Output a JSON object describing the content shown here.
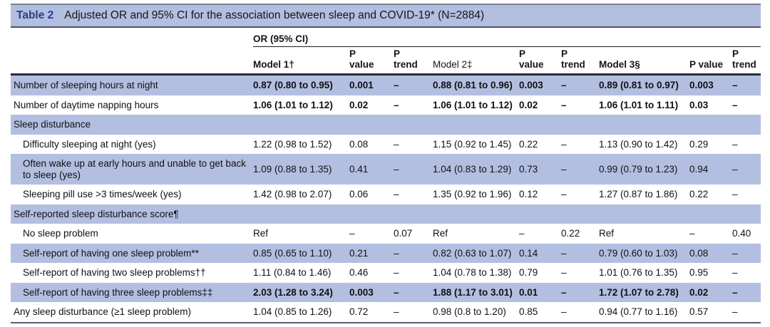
{
  "table": {
    "title_label": "Table 2",
    "title_text": "Adjusted OR and 95% CI for the association between sleep and COVID-19* (N=2884)",
    "spanner": "OR (95% CI)",
    "columns": [
      {
        "label": "",
        "bold": true
      },
      {
        "label": "Model 1†",
        "bold": true
      },
      {
        "label": "P\nvalue",
        "bold": true
      },
      {
        "label": "P\ntrend",
        "bold": true
      },
      {
        "label": "Model 2‡",
        "bold": false
      },
      {
        "label": "P\nvalue",
        "bold": true
      },
      {
        "label": "P\ntrend",
        "bold": true
      },
      {
        "label": "Model 3§",
        "bold": true
      },
      {
        "label": "P value",
        "bold": true
      },
      {
        "label": "P\ntrend",
        "bold": true
      }
    ],
    "rows": [
      {
        "label": "Number of sleeping hours at night",
        "section": false,
        "indent": false,
        "bold": true,
        "shaded": true,
        "values": [
          "0.87 (0.80 to 0.95)",
          "0.001",
          "–",
          "0.88 (0.81 to 0.96)",
          "0.003",
          "–",
          "0.89 (0.81 to 0.97)",
          "0.003",
          "–"
        ]
      },
      {
        "label": "Number of daytime napping hours",
        "section": false,
        "indent": false,
        "bold": true,
        "shaded": false,
        "values": [
          "1.06 (1.01 to 1.12)",
          "0.02",
          "–",
          "1.06 (1.01 to 1.12)",
          "0.02",
          "–",
          "1.06 (1.01 to 1.11)",
          "0.03",
          "–"
        ]
      },
      {
        "label": "Sleep disturbance",
        "section": true,
        "indent": false,
        "bold": false,
        "shaded": true,
        "values": []
      },
      {
        "label": "Difficulty sleeping at night (yes)",
        "section": false,
        "indent": true,
        "bold": false,
        "shaded": false,
        "values": [
          "1.22 (0.98 to 1.52)",
          "0.08",
          "–",
          "1.15 (0.92 to 1.45)",
          "0.22",
          "–",
          "1.13 (0.90 to 1.42)",
          "0.29",
          "–"
        ]
      },
      {
        "label": "Often wake up at early hours and unable to get back to sleep (yes)",
        "section": false,
        "indent": true,
        "bold": false,
        "shaded": true,
        "values": [
          "1.09 (0.88 to 1.35)",
          "0.41",
          "–",
          "1.04 (0.83 to 1.29)",
          "0.73",
          "–",
          "0.99 (0.79 to 1.23)",
          "0.94",
          "–"
        ]
      },
      {
        "label": "Sleeping pill use >3 times/week (yes)",
        "section": false,
        "indent": true,
        "bold": false,
        "shaded": false,
        "values": [
          "1.42 (0.98 to 2.07)",
          "0.06",
          "–",
          "1.35 (0.92 to 1.96)",
          "0.12",
          "–",
          "1.27 (0.87 to 1.86)",
          "0.22",
          "–"
        ]
      },
      {
        "label": "Self-reported sleep disturbance score¶",
        "section": true,
        "indent": false,
        "bold": false,
        "shaded": true,
        "values": []
      },
      {
        "label": "No sleep problem",
        "section": false,
        "indent": true,
        "bold": false,
        "shaded": false,
        "values": [
          "Ref",
          "–",
          "0.07",
          "Ref",
          "–",
          "0.22",
          "Ref",
          "–",
          "0.40"
        ]
      },
      {
        "label": "Self-report of having one sleep problem**",
        "section": false,
        "indent": true,
        "bold": false,
        "shaded": true,
        "values": [
          "0.85 (0.65 to 1.10)",
          "0.21",
          "–",
          "0.82 (0.63 to 1.07)",
          "0.14",
          "–",
          "0.79 (0.60 to 1.03)",
          "0.08",
          "–"
        ]
      },
      {
        "label": "Self-report of having two sleep problems††",
        "section": false,
        "indent": true,
        "bold": false,
        "shaded": false,
        "values": [
          "1.11 (0.84 to 1.46)",
          "0.46",
          "–",
          "1.04 (0.78 to 1.38)",
          "0.79",
          "–",
          "1.01 (0.76 to 1.35)",
          "0.95",
          "–"
        ]
      },
      {
        "label": "Self-report of having three sleep problems‡‡",
        "section": false,
        "indent": true,
        "bold": true,
        "shaded": true,
        "values": [
          "2.03 (1.28 to 3.24)",
          "0.003",
          "–",
          "1.88 (1.17 to 3.01)",
          "0.01",
          "–",
          "1.72 (1.07 to 2.78)",
          "0.02",
          "–"
        ]
      },
      {
        "label": "Any sleep disturbance (≥1 sleep problem)",
        "section": false,
        "indent": false,
        "bold": false,
        "shaded": false,
        "values": [
          "1.04 (0.85 to 1.26)",
          "0.72",
          "–",
          "0.98 (0.8 to 1.20)",
          "0.85",
          "–",
          "0.94 (0.77 to 1.16)",
          "0.57",
          "–"
        ]
      }
    ],
    "colors": {
      "band": "#b3bfe0",
      "table_label_blue": "#2e3b8f"
    }
  }
}
